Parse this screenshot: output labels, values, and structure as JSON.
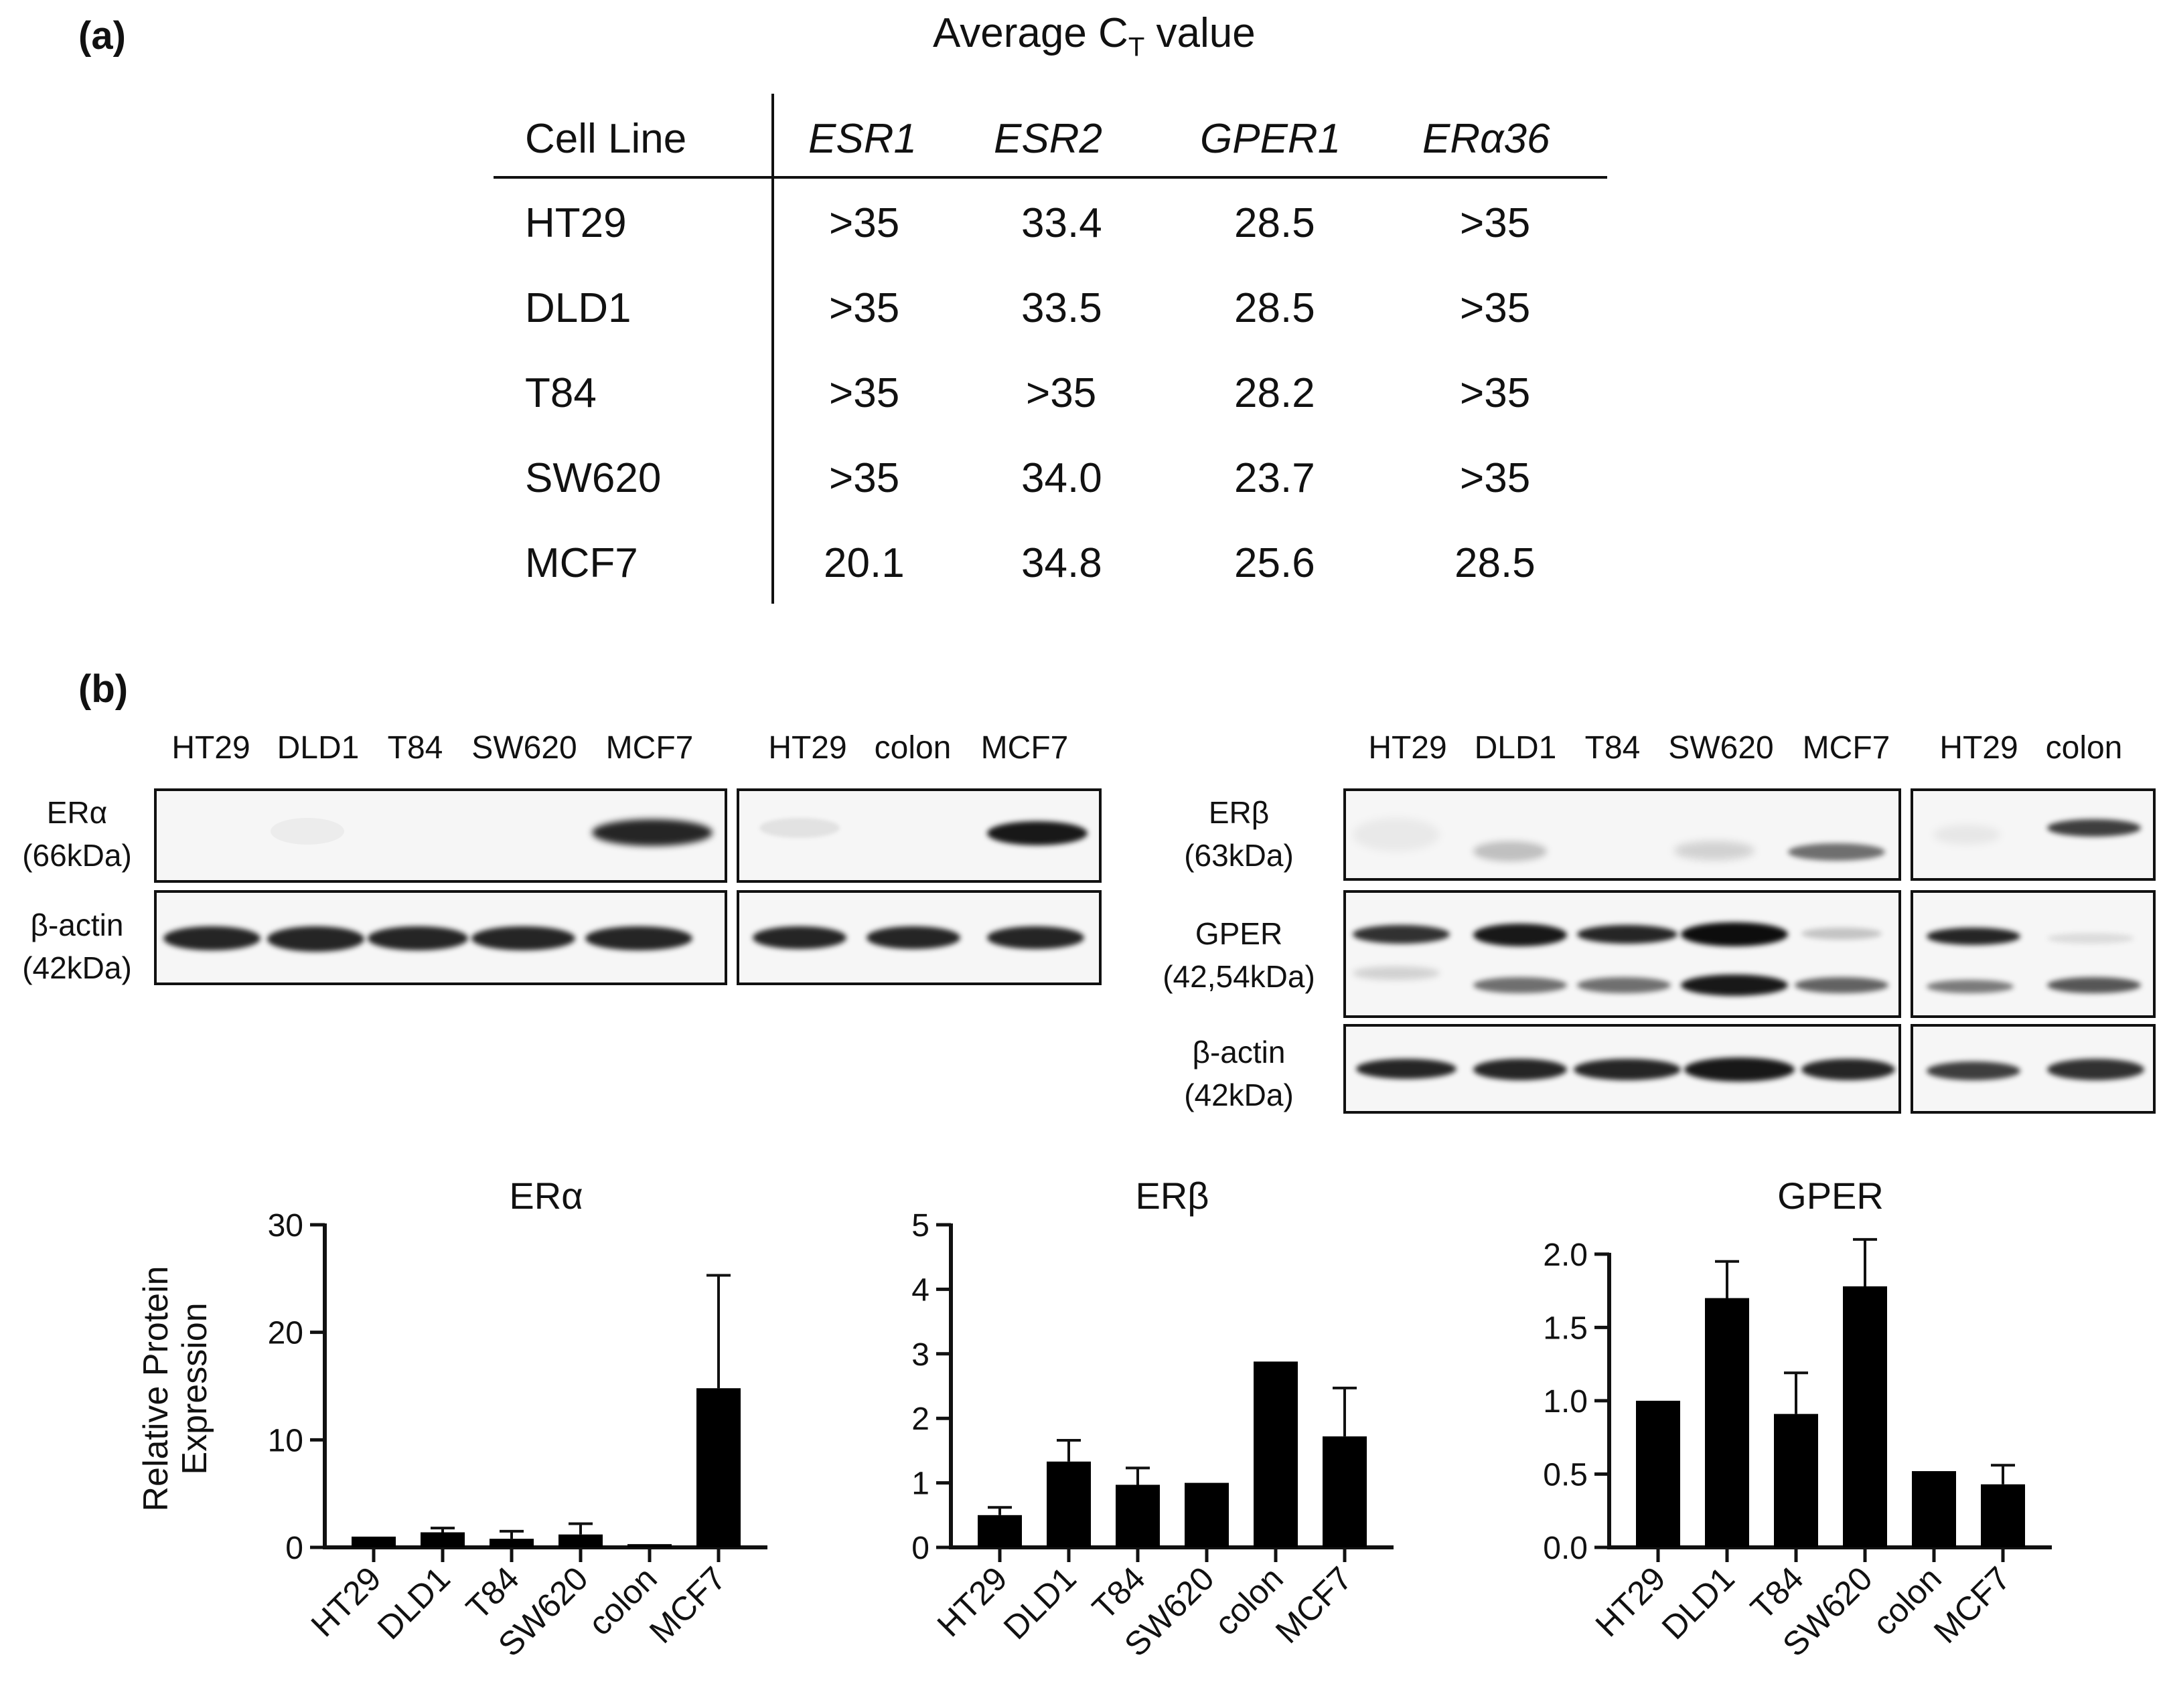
{
  "panel_a": {
    "label": "(a)",
    "title_prefix": "Average C",
    "title_sub": "T",
    "title_suffix": " value",
    "header": [
      "Cell Line",
      "ESR1",
      "ESR2",
      "GPER1",
      "ERα36"
    ],
    "rows": [
      [
        "HT29",
        ">35",
        "33.4",
        "28.5",
        ">35"
      ],
      [
        "DLD1",
        ">35",
        "33.5",
        "28.5",
        ">35"
      ],
      [
        "T84",
        ">35",
        ">35",
        "28.2",
        ">35"
      ],
      [
        "SW620",
        ">35",
        "34.0",
        "23.7",
        ">35"
      ],
      [
        "MCF7",
        "20.1",
        "34.8",
        "25.6",
        "28.5"
      ]
    ]
  },
  "panel_b": {
    "label": "(b)",
    "left_blot": {
      "lanes_a": [
        "HT29",
        "DLD1",
        "T84",
        "SW620",
        "MCF7"
      ],
      "lanes_b": [
        "HT29",
        "colon",
        "MCF7"
      ],
      "row_labels": [
        [
          "ERα",
          "(66kDa)"
        ],
        [
          "β-actin",
          "(42kDa)"
        ]
      ]
    },
    "right_blot": {
      "lanes_a": [
        "HT29",
        "DLD1",
        "T84",
        "SW620",
        "MCF7"
      ],
      "lanes_b": [
        "HT29",
        "colon"
      ],
      "row_labels": [
        [
          "ERβ",
          "(63kDa)"
        ],
        [
          "GPER",
          "(42,54kDa)"
        ],
        [
          "β-actin",
          "(42kDa)"
        ]
      ]
    }
  },
  "chart_data": [
    {
      "type": "bar",
      "title": "ERα",
      "ylabel": "Relative Protein Expression",
      "ylabel_lines": [
        "Relative Protein",
        "Expression"
      ],
      "categories": [
        "HT29",
        "DLD1",
        "T84",
        "SW620",
        "colon",
        "MCF7"
      ],
      "values": [
        1.0,
        1.4,
        0.8,
        1.2,
        0.3,
        14.8
      ],
      "errors": [
        0,
        0.4,
        0.7,
        1.0,
        0,
        10.5
      ],
      "ylim": [
        0,
        30
      ],
      "yticks": [
        "0",
        "10",
        "20",
        "30"
      ],
      "ytick_values": [
        0,
        10,
        20,
        30
      ]
    },
    {
      "type": "bar",
      "title": "ERβ",
      "categories": [
        "HT29",
        "DLD1",
        "T84",
        "SW620",
        "colon",
        "MCF7"
      ],
      "values": [
        0.5,
        1.33,
        0.97,
        1.0,
        2.88,
        1.72
      ],
      "errors": [
        0.12,
        0.33,
        0.26,
        0,
        0,
        0.75
      ],
      "ylim": [
        0,
        5
      ],
      "yticks": [
        "0",
        "1",
        "2",
        "3",
        "4",
        "5"
      ],
      "ytick_values": [
        0,
        1,
        2,
        3,
        4,
        5
      ]
    },
    {
      "type": "bar",
      "title": "GPER",
      "categories": [
        "HT29",
        "DLD1",
        "T84",
        "SW620",
        "colon",
        "MCF7"
      ],
      "values": [
        1.0,
        1.7,
        0.91,
        1.78,
        0.52,
        0.43
      ],
      "errors": [
        0,
        0.25,
        0.28,
        0.32,
        0,
        0.13
      ],
      "ylim": [
        0,
        2.2
      ],
      "yticks": [
        "0.0",
        "0.5",
        "1.0",
        "1.5",
        "2.0"
      ],
      "ytick_values": [
        0,
        0.5,
        1.0,
        1.5,
        2.0
      ]
    }
  ]
}
